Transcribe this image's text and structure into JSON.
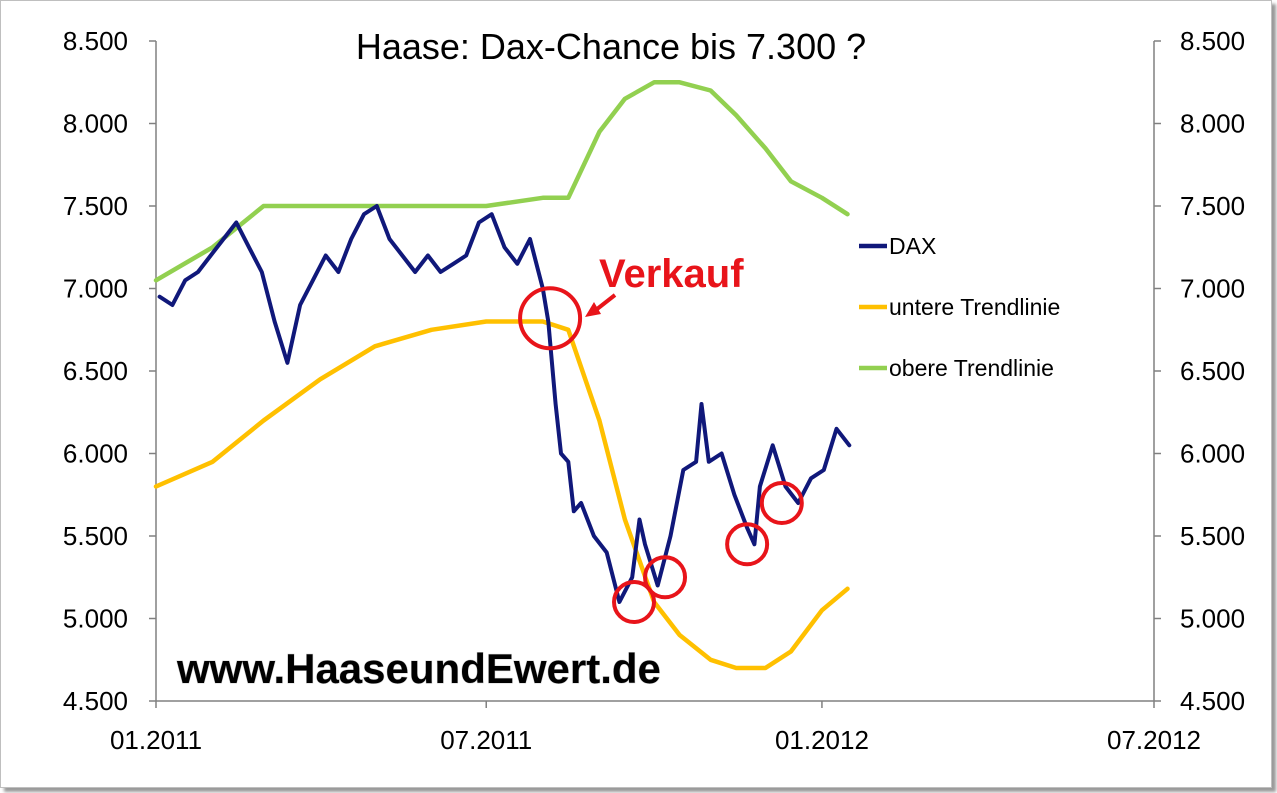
{
  "chart_data": {
    "type": "line",
    "title": "Haase: Dax-Chance bis 7.300 ?",
    "ylim": [
      4500,
      8500
    ],
    "yticks": [
      4500,
      5000,
      5500,
      6000,
      6500,
      7000,
      7500,
      8000,
      8500
    ],
    "ytick_labels": [
      "4.500",
      "5.000",
      "5.500",
      "6.000",
      "6.500",
      "7.000",
      "7.500",
      "8.000",
      "8.500"
    ],
    "y2ticks": [
      4500,
      5000,
      5500,
      6000,
      6500,
      7000,
      7500,
      8000,
      8500
    ],
    "y2tick_labels": [
      "4.500",
      "5.000",
      "5.500",
      "6.000",
      "6.500",
      "7.000",
      "7.500",
      "8.000",
      "8.500"
    ],
    "xlim": [
      "2011-01",
      "2012-07"
    ],
    "xticks": [
      "2011-01",
      "2011-07",
      "2012-01",
      "2012-07"
    ],
    "xtick_labels": [
      "01.2011",
      "07.2011",
      "01.2012",
      "07.2012"
    ],
    "legend_position": "right",
    "grid": false,
    "series": [
      {
        "name": "DAX",
        "color": "#10187a",
        "x": [
          "2011-01-03",
          "2011-01-10",
          "2011-01-17",
          "2011-01-24",
          "2011-01-31",
          "2011-02-07",
          "2011-02-14",
          "2011-02-21",
          "2011-02-28",
          "2011-03-07",
          "2011-03-14",
          "2011-03-21",
          "2011-03-28",
          "2011-04-04",
          "2011-04-11",
          "2011-04-18",
          "2011-04-25",
          "2011-05-02",
          "2011-05-09",
          "2011-05-16",
          "2011-05-23",
          "2011-05-30",
          "2011-06-06",
          "2011-06-13",
          "2011-06-20",
          "2011-06-27",
          "2011-07-04",
          "2011-07-11",
          "2011-07-18",
          "2011-07-25",
          "2011-08-01",
          "2011-08-04",
          "2011-08-08",
          "2011-08-11",
          "2011-08-15",
          "2011-08-18",
          "2011-08-22",
          "2011-08-29",
          "2011-09-05",
          "2011-09-12",
          "2011-09-19",
          "2011-09-23",
          "2011-09-26",
          "2011-10-03",
          "2011-10-10",
          "2011-10-17",
          "2011-10-24",
          "2011-10-27",
          "2011-10-31",
          "2011-11-07",
          "2011-11-14",
          "2011-11-21",
          "2011-11-25",
          "2011-11-28",
          "2011-12-05",
          "2011-12-12",
          "2011-12-19",
          "2011-12-26",
          "2012-01-02",
          "2012-01-09",
          "2012-01-16"
        ],
        "values": [
          6950,
          6900,
          7050,
          7100,
          7200,
          7300,
          7400,
          7250,
          7100,
          6800,
          6550,
          6900,
          7050,
          7200,
          7100,
          7300,
          7450,
          7500,
          7300,
          7200,
          7100,
          7200,
          7100,
          7150,
          7200,
          7400,
          7450,
          7250,
          7150,
          7300,
          7000,
          6800,
          6300,
          6000,
          5950,
          5650,
          5700,
          5500,
          5400,
          5100,
          5250,
          5600,
          5450,
          5200,
          5500,
          5900,
          5950,
          6300,
          5950,
          6000,
          5750,
          5550,
          5450,
          5800,
          6050,
          5800,
          5700,
          5850,
          5900,
          6150,
          6050
        ]
      },
      {
        "name": "untere Trendlinie",
        "color": "#ffc000",
        "x": [
          "2011-01-01",
          "2011-02-01",
          "2011-03-01",
          "2011-04-01",
          "2011-05-01",
          "2011-06-01",
          "2011-07-01",
          "2011-08-01",
          "2011-08-15",
          "2011-09-01",
          "2011-09-15",
          "2011-10-01",
          "2011-10-15",
          "2011-11-01",
          "2011-11-15",
          "2011-12-01",
          "2011-12-15",
          "2012-01-01",
          "2012-01-15"
        ],
        "values": [
          5800,
          5950,
          6200,
          6450,
          6650,
          6750,
          6800,
          6800,
          6750,
          6200,
          5600,
          5100,
          4900,
          4750,
          4700,
          4700,
          4800,
          5050,
          5180
        ]
      },
      {
        "name": "obere Trendlinie",
        "color": "#92d050",
        "x": [
          "2011-01-01",
          "2011-02-01",
          "2011-03-01",
          "2011-04-01",
          "2011-05-01",
          "2011-06-01",
          "2011-07-01",
          "2011-08-01",
          "2011-08-15",
          "2011-09-01",
          "2011-09-15",
          "2011-10-01",
          "2011-10-15",
          "2011-11-01",
          "2011-11-15",
          "2011-12-01",
          "2011-12-15",
          "2012-01-01",
          "2012-01-15"
        ],
        "values": [
          7050,
          7250,
          7500,
          7500,
          7500,
          7500,
          7500,
          7550,
          7550,
          7950,
          8150,
          8250,
          8250,
          8200,
          8050,
          7850,
          7650,
          7550,
          7450
        ]
      }
    ],
    "annotations": [
      {
        "text": "Verkauf",
        "color": "#e8141a"
      }
    ],
    "markers": [
      {
        "x": "2011-08-05",
        "y": 6820,
        "label": ""
      },
      {
        "x": "2011-09-20",
        "y": 5100,
        "label": ""
      },
      {
        "x": "2011-10-07",
        "y": 5250,
        "label": ""
      },
      {
        "x": "2011-11-21",
        "y": 5450,
        "label": ""
      },
      {
        "x": "2011-12-10",
        "y": 5700,
        "label": ""
      }
    ]
  },
  "watermark": "www.HaaseundEwert.de",
  "colors": {
    "marker": "#e8141a"
  }
}
